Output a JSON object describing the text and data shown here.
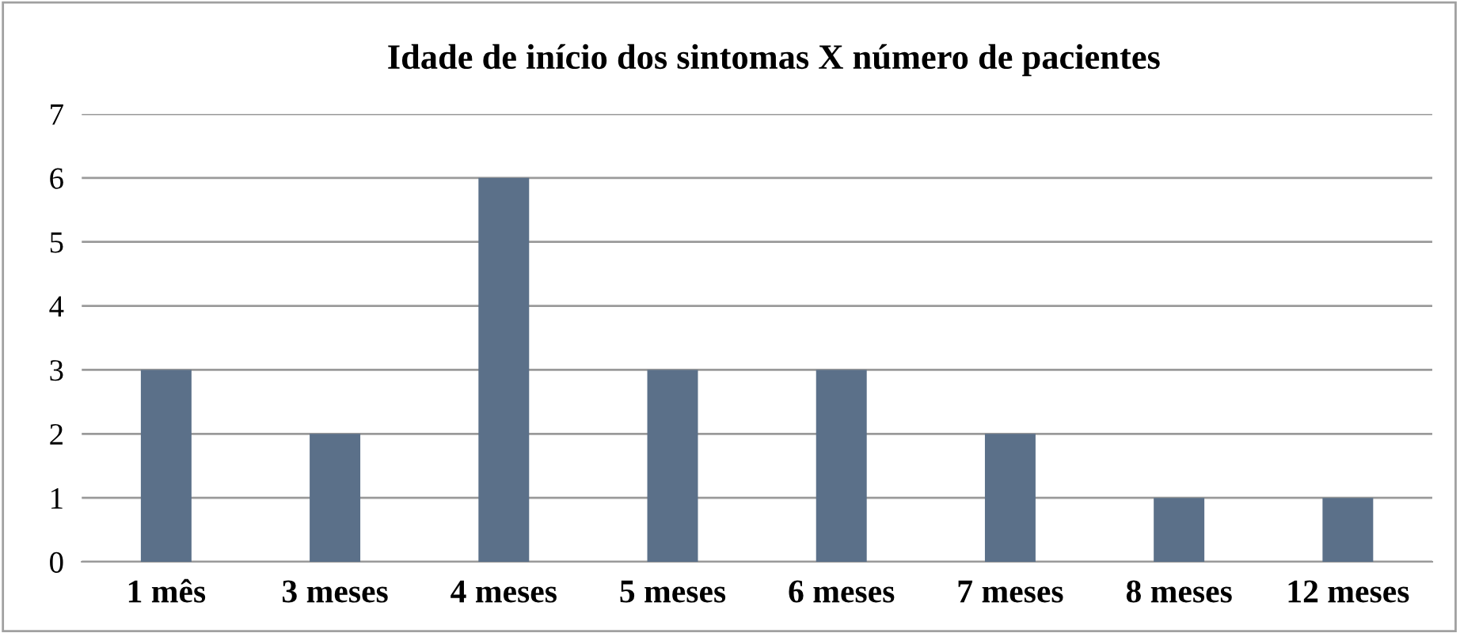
{
  "chart_data": {
    "type": "bar",
    "title": "Idade de início dos sintomas X número de pacientes",
    "categories": [
      "1 mês",
      "3 meses",
      "4 meses",
      "5 meses",
      "6 meses",
      "7 meses",
      "8 meses",
      "12 meses"
    ],
    "values": [
      3,
      2,
      6,
      3,
      3,
      2,
      1,
      1
    ],
    "color": "#5b7089",
    "ylim": [
      0,
      7
    ],
    "yticks": [
      0,
      1,
      2,
      3,
      4,
      5,
      6,
      7
    ],
    "grid": "y",
    "legend": false
  }
}
